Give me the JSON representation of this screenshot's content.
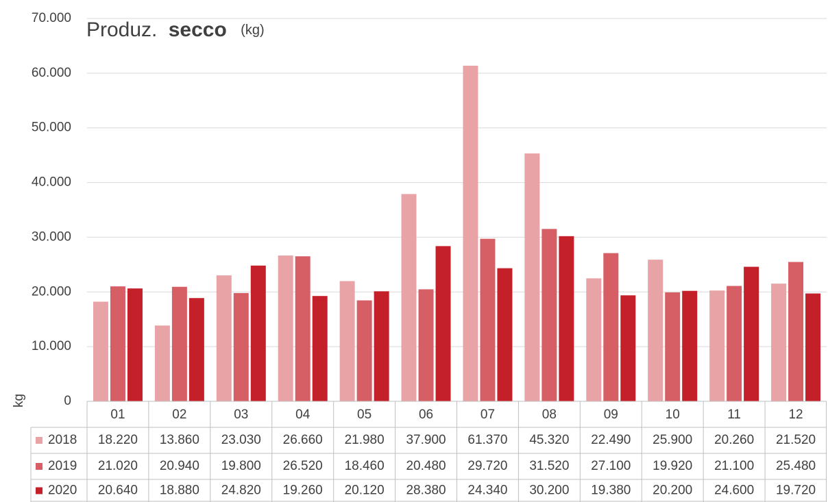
{
  "chart_data": {
    "type": "bar",
    "title": [
      "Produz.",
      "secco",
      "(kg)"
    ],
    "y_label": "kg",
    "categories": [
      "01",
      "02",
      "03",
      "04",
      "05",
      "06",
      "07",
      "08",
      "09",
      "10",
      "11",
      "12"
    ],
    "series": [
      {
        "name": "2018",
        "color": "#e8a3a6",
        "values": [
          18220,
          13860,
          23030,
          26660,
          21980,
          37900,
          61370,
          45320,
          22490,
          25900,
          20260,
          21520
        ],
        "value_labels": [
          "18.220",
          "13.860",
          "23.030",
          "26.660",
          "21.980",
          "37.900",
          "61.370",
          "45.320",
          "22.490",
          "25.900",
          "20.260",
          "21.520"
        ]
      },
      {
        "name": "2019",
        "color": "#d65f66",
        "values": [
          21020,
          20940,
          19800,
          26520,
          18460,
          20480,
          29720,
          31520,
          27100,
          19920,
          21100,
          25480
        ],
        "value_labels": [
          "21.020",
          "20.940",
          "19.800",
          "26.520",
          "18.460",
          "20.480",
          "29.720",
          "31.520",
          "27.100",
          "19.920",
          "21.100",
          "25.480"
        ]
      },
      {
        "name": "2020",
        "color": "#c4202a",
        "values": [
          20640,
          18880,
          24820,
          19260,
          20120,
          28380,
          24340,
          30200,
          19380,
          20200,
          24600,
          19720
        ],
        "value_labels": [
          "20.640",
          "18.880",
          "24.820",
          "19.260",
          "20.120",
          "28.380",
          "24.340",
          "30.200",
          "19.380",
          "20.200",
          "24.600",
          "19.720"
        ]
      }
    ],
    "ylim": [
      0,
      70000
    ],
    "yticks": [
      0,
      {
        "value": 10000,
        "label": "10.000"
      },
      {
        "value": 20000,
        "label": "20.000"
      },
      {
        "value": 30000,
        "label": "30.000"
      },
      {
        "value": 40000,
        "label": "40.000"
      },
      {
        "value": 50000,
        "label": "50.000"
      },
      {
        "value": 60000,
        "label": "60.000"
      },
      {
        "value": 70000,
        "label": "70.000"
      }
    ],
    "grid": true
  }
}
